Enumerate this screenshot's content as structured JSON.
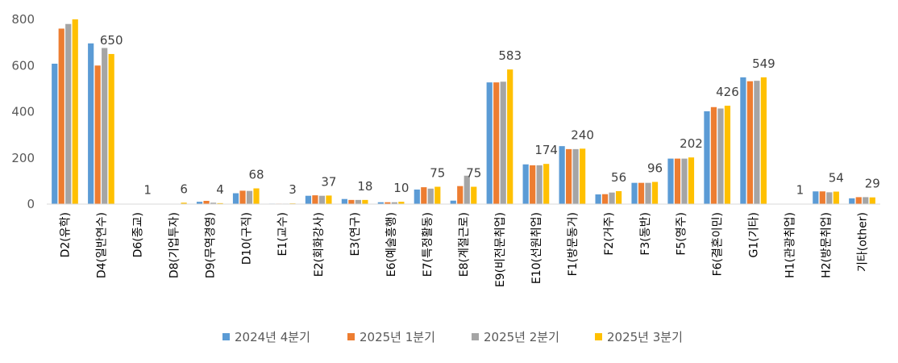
{
  "chart_data": {
    "type": "bar",
    "categories": [
      "D2(유학)",
      "D4(일반연수)",
      "D6(종교)",
      "D8(기업투자)",
      "D9(무역경영)",
      "D10(구직)",
      "E1(교수)",
      "E2(회화강사)",
      "E3(연구)",
      "E6(예술흥행)",
      "E7(특정활동)",
      "E8(계절근로)",
      "E9(비전문취업)",
      "E10(선원취업)",
      "F1(방문동거)",
      "F2(거주)",
      "F3(동반)",
      "F5(영주)",
      "F6(결혼이민)",
      "G1(기타)",
      "H1(관광취업)",
      "H2(방문취업)",
      "기타(other)"
    ],
    "series": [
      {
        "name": "2024년 4분기",
        "color": "#5B9BD5",
        "values": [
          608,
          696,
          1,
          1,
          10,
          47,
          2,
          36,
          22,
          8,
          63,
          15,
          527,
          172,
          251,
          42,
          92,
          197,
          402,
          549,
          1,
          55,
          25
        ]
      },
      {
        "name": "2025년 1분기",
        "color": "#ED7D31",
        "values": [
          760,
          600,
          1,
          1,
          14,
          58,
          2,
          38,
          18,
          8,
          73,
          78,
          527,
          168,
          238,
          43,
          92,
          197,
          420,
          532,
          1,
          55,
          30
        ]
      },
      {
        "name": "2025년 2분기",
        "color": "#A5A5A5",
        "values": [
          780,
          676,
          1,
          1,
          6,
          57,
          2,
          36,
          18,
          8,
          67,
          123,
          530,
          168,
          238,
          50,
          92,
          197,
          414,
          534,
          1,
          51,
          30
        ]
      },
      {
        "name": "2025년 3분기",
        "color": "#FFC000",
        "values": [
          800,
          650,
          1,
          6,
          4,
          68,
          3,
          37,
          18,
          10,
          75,
          75,
          583,
          174,
          240,
          56,
          96,
          202,
          426,
          549,
          1,
          54,
          29
        ]
      }
    ],
    "data_labels": [
      "",
      "650",
      "1",
      "6",
      "4",
      "68",
      "3",
      "37",
      "18",
      "10",
      "75",
      "75",
      "583",
      "174",
      "240",
      "56",
      "96",
      "202",
      "426",
      "549",
      "1",
      "54",
      "29"
    ],
    "y_ticks": [
      "0",
      "200",
      "400",
      "600",
      "800"
    ],
    "ylim": [
      0,
      800
    ],
    "grid": false,
    "legend_position": "bottom",
    "title": "",
    "xlabel": "",
    "ylabel": ""
  }
}
